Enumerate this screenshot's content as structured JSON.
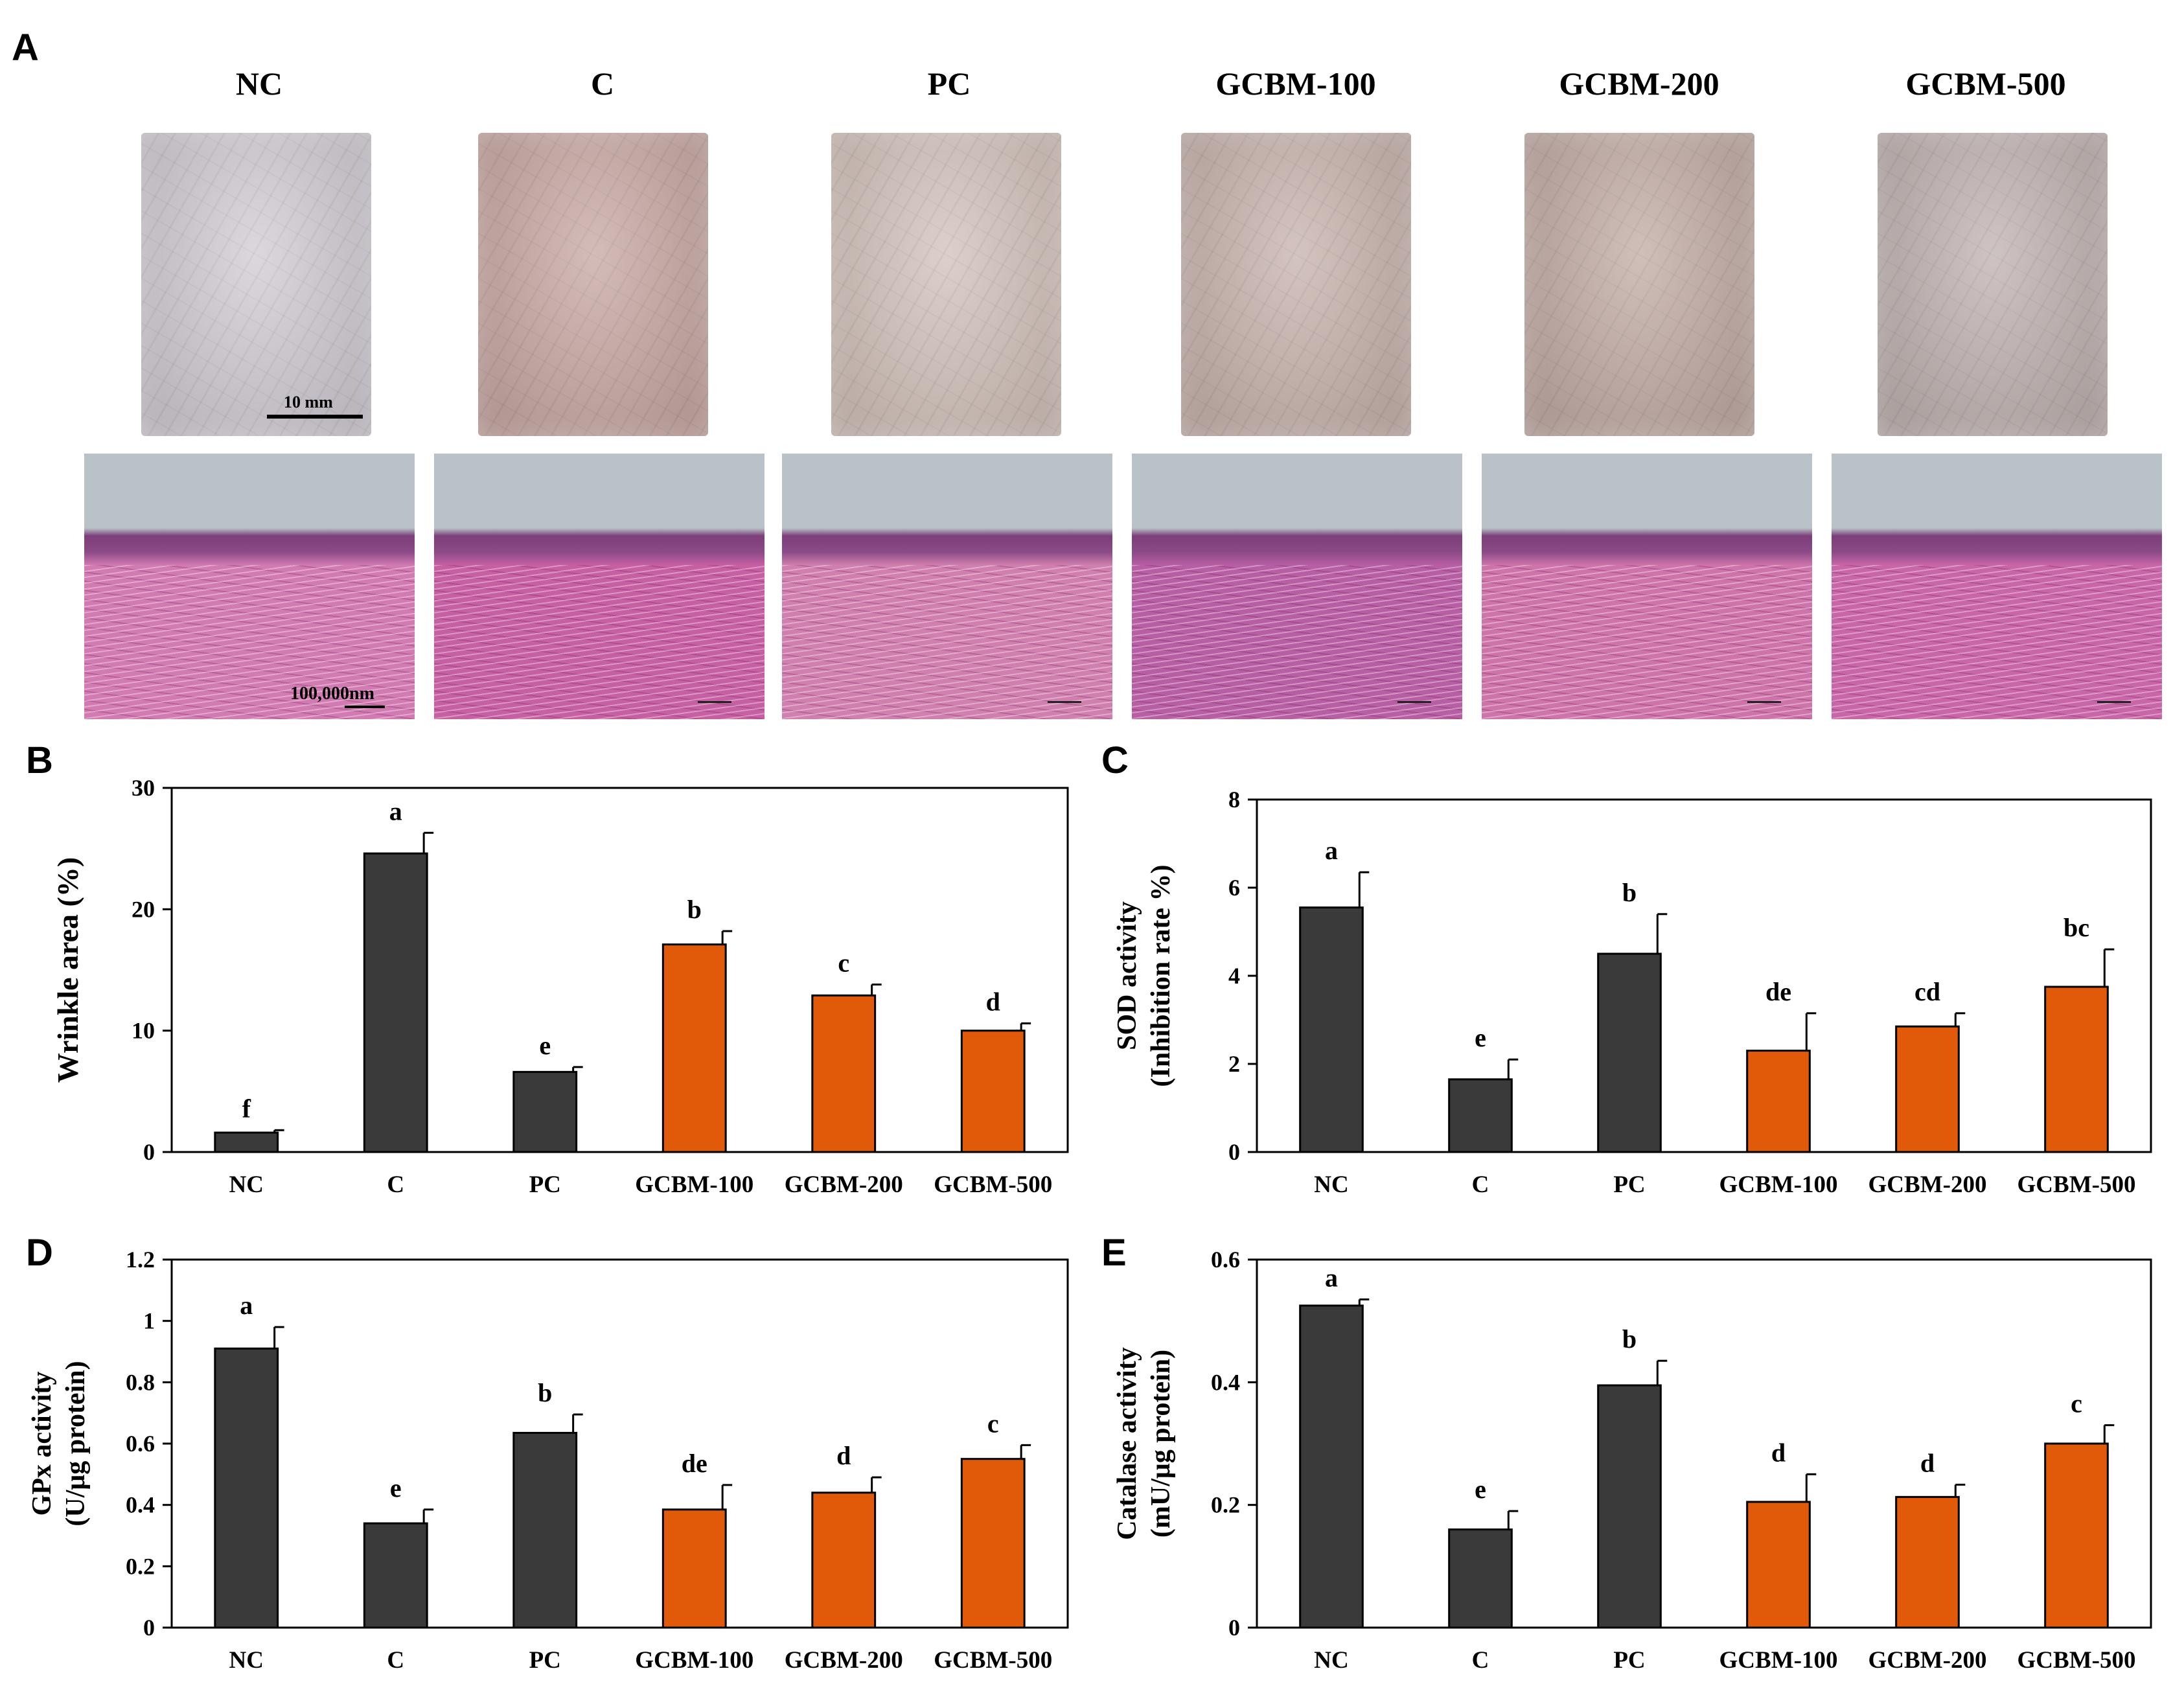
{
  "panels": {
    "A": "A",
    "B": "B",
    "C": "C",
    "D": "D",
    "E": "E"
  },
  "panel_a": {
    "groups": [
      "NC",
      "C",
      "PC",
      "GCBM-100",
      "GCBM-200",
      "GCBM-500"
    ],
    "photo_scale_label": "10 mm",
    "histo_scale_label": "100,000nm",
    "photo_colors": [
      "#d2ccd4",
      "#c9a9a4",
      "#d3c2bb",
      "#c8b3ad",
      "#c3aca6",
      "#c0b3b1"
    ],
    "histo_colors": [
      "#d27ab2",
      "#c75fa3",
      "#d07fae",
      "#b85ea4",
      "#cf73ab",
      "#c966a8"
    ]
  },
  "colors": {
    "control_bar": "#3a3a3a",
    "treatment_bar": "#e05a0a"
  },
  "chart_data": [
    {
      "id": "B",
      "type": "bar",
      "categories": [
        "NC",
        "C",
        "PC",
        "GCBM-100",
        "GCBM-200",
        "GCBM-500"
      ],
      "values": [
        1.6,
        24.6,
        6.6,
        17.1,
        12.9,
        10.0
      ],
      "errors": [
        0.2,
        1.7,
        0.4,
        1.1,
        0.9,
        0.6
      ],
      "letters": [
        "f",
        "a",
        "e",
        "b",
        "c",
        "d"
      ],
      "ylabel": "Wrinkle area (%)",
      "ylabel2": "",
      "ylim": [
        0,
        30
      ],
      "yticks": [
        "0",
        "10",
        "20",
        "30"
      ]
    },
    {
      "id": "C",
      "type": "bar",
      "categories": [
        "NC",
        "C",
        "PC",
        "GCBM-100",
        "GCBM-200",
        "GCBM-500"
      ],
      "values": [
        5.55,
        1.65,
        4.5,
        2.3,
        2.85,
        3.75
      ],
      "errors": [
        0.8,
        0.45,
        0.9,
        0.85,
        0.3,
        0.85
      ],
      "letters": [
        "a",
        "e",
        "b",
        "de",
        "cd",
        "bc"
      ],
      "ylabel": "SOD activity",
      "ylabel2": "(Inhibition rate %)",
      "ylim": [
        0,
        8
      ],
      "yticks": [
        "0",
        "2",
        "4",
        "6",
        "8"
      ]
    },
    {
      "id": "D",
      "type": "bar",
      "categories": [
        "NC",
        "C",
        "PC",
        "GCBM-100",
        "GCBM-200",
        "GCBM-500"
      ],
      "values": [
        0.91,
        0.34,
        0.635,
        0.385,
        0.44,
        0.55
      ],
      "errors": [
        0.07,
        0.045,
        0.06,
        0.08,
        0.05,
        0.045
      ],
      "letters": [
        "a",
        "e",
        "b",
        "de",
        "d",
        "c"
      ],
      "ylabel": "GPx activity",
      "ylabel2": "(U/μg protein)",
      "ylim": [
        0,
        1.2
      ],
      "yticks": [
        "0",
        "0.2",
        "0.4",
        "0.6",
        "0.8",
        "1",
        "1.2"
      ]
    },
    {
      "id": "E",
      "type": "bar",
      "categories": [
        "NC",
        "C",
        "PC",
        "GCBM-100",
        "GCBM-200",
        "GCBM-500"
      ],
      "values": [
        0.525,
        0.16,
        0.395,
        0.205,
        0.213,
        0.3
      ],
      "errors": [
        0.01,
        0.03,
        0.04,
        0.045,
        0.02,
        0.03
      ],
      "letters": [
        "a",
        "e",
        "b",
        "d",
        "d",
        "c"
      ],
      "ylabel": "Catalase activity",
      "ylabel2": "(mU/μg protein)",
      "ylim": [
        0,
        0.6
      ],
      "yticks": [
        "0",
        "0.2",
        "0.4",
        "0.6"
      ]
    }
  ]
}
